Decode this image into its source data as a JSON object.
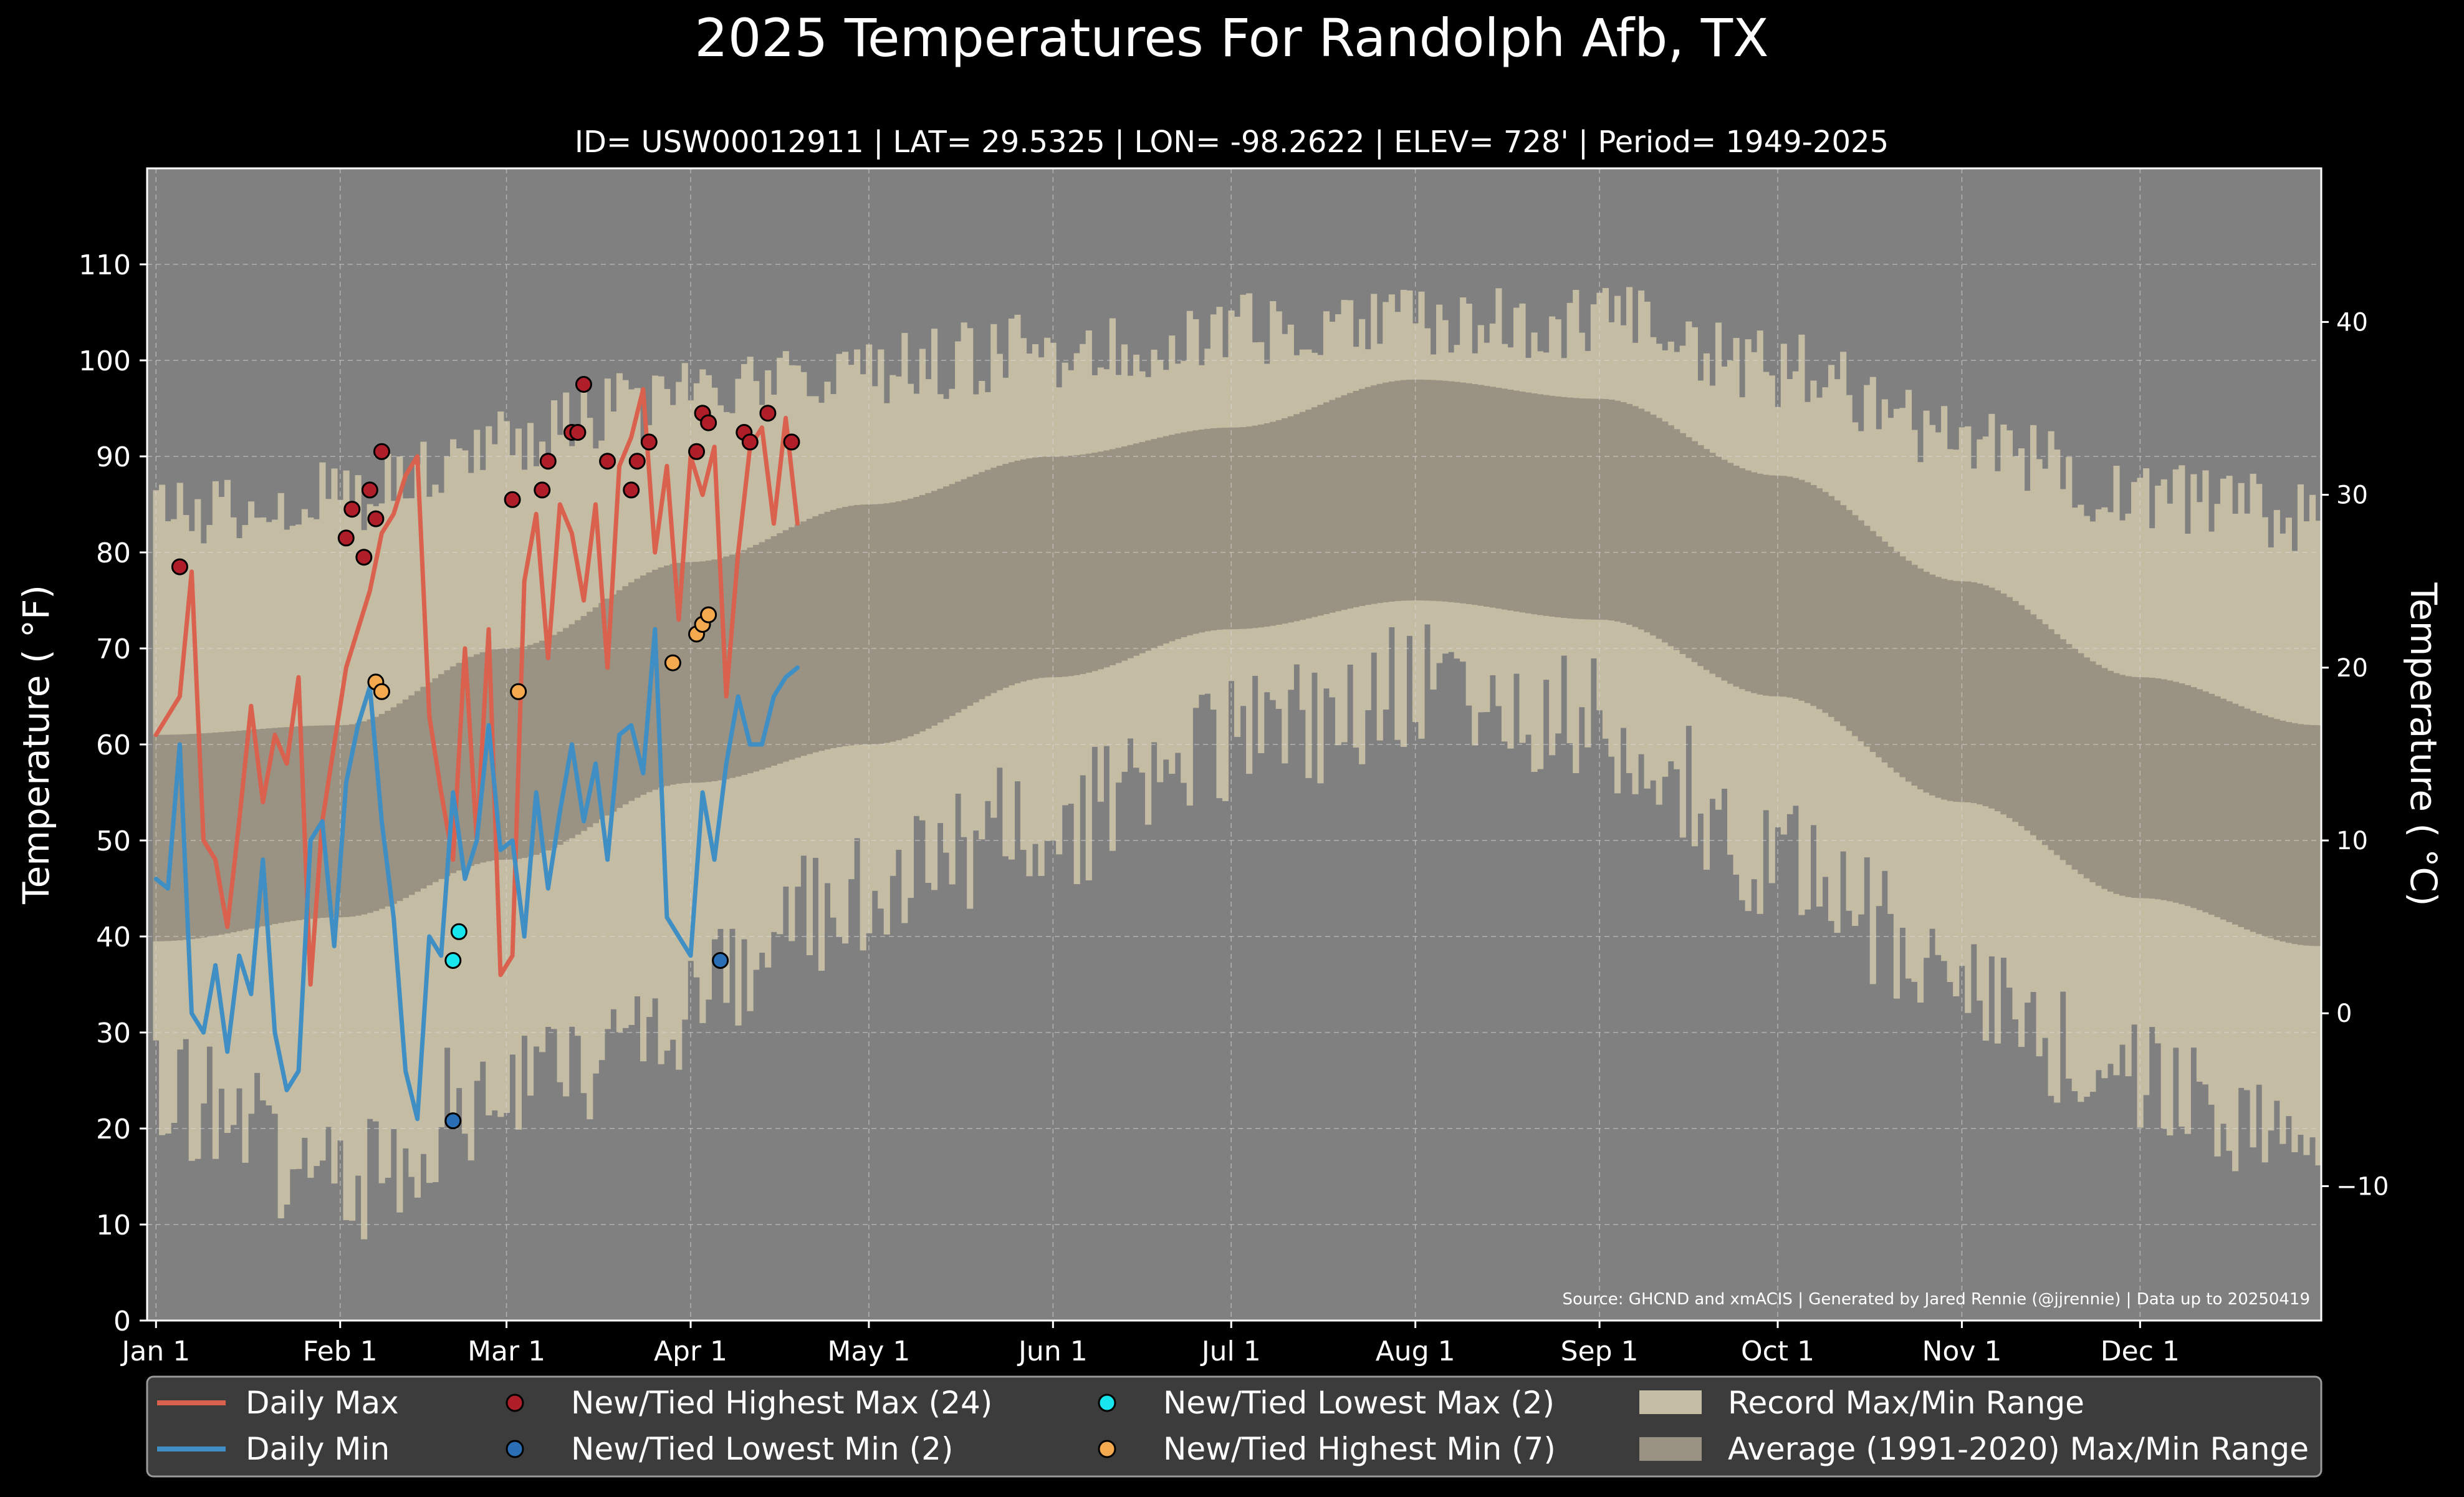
{
  "chart_data": {
    "type": "line",
    "title": "2025 Temperatures For Randolph Afb, TX",
    "subtitle": "ID= USW00012911 | LAT= 29.5325 | LON= -98.2622 | ELEV= 728' | Period= 1949-2025",
    "ylabel": "Temperature ($^\\circ$F)",
    "ylabel_display": "Temperature ( °F)",
    "y2label": "Temperature ( °C)",
    "source": "Source: GHCND and xmACIS | Generated by Jared Rennie (@jjrennie) | Data up to 20250419",
    "ylim": [
      0,
      120
    ],
    "xlim_days": [
      -1.5,
      364.5
    ],
    "grid": true,
    "legend_position": "bottom",
    "y_ticks": [
      0,
      10,
      20,
      30,
      40,
      50,
      60,
      70,
      80,
      90,
      100,
      110
    ],
    "y2_ticks": [
      40,
      30,
      20,
      10,
      0,
      -10
    ],
    "x_ticks": [
      {
        "label": "Jan 1",
        "day": 0
      },
      {
        "label": "Feb 1",
        "day": 31
      },
      {
        "label": "Mar 1",
        "day": 59
      },
      {
        "label": "Apr 1",
        "day": 90
      },
      {
        "label": "May 1",
        "day": 120
      },
      {
        "label": "Jun 1",
        "day": 151
      },
      {
        "label": "Jul 1",
        "day": 181
      },
      {
        "label": "Aug 1",
        "day": 212
      },
      {
        "label": "Sep 1",
        "day": 243
      },
      {
        "label": "Oct 1",
        "day": 273
      },
      {
        "label": "Nov 1",
        "day": 304
      },
      {
        "label": "Dec 1",
        "day": 334
      }
    ],
    "average_range": {
      "name": "Average (1991-2020) Max/Min Range",
      "max_keypoints": [
        [
          0,
          61
        ],
        [
          31,
          62
        ],
        [
          59,
          70
        ],
        [
          90,
          79
        ],
        [
          120,
          85
        ],
        [
          151,
          90
        ],
        [
          181,
          93
        ],
        [
          212,
          98
        ],
        [
          243,
          96
        ],
        [
          273,
          88
        ],
        [
          304,
          77
        ],
        [
          334,
          67
        ],
        [
          364,
          62
        ]
      ],
      "min_keypoints": [
        [
          0,
          39.5
        ],
        [
          31,
          42
        ],
        [
          59,
          48
        ],
        [
          90,
          56
        ],
        [
          120,
          60
        ],
        [
          151,
          67
        ],
        [
          181,
          72
        ],
        [
          212,
          75
        ],
        [
          243,
          73
        ],
        [
          273,
          65
        ],
        [
          304,
          54
        ],
        [
          334,
          44
        ],
        [
          364,
          39
        ]
      ]
    },
    "record_range": {
      "name": "Record Max/Min Range",
      "max_keypoints": [
        [
          0,
          84
        ],
        [
          31,
          86
        ],
        [
          59,
          92
        ],
        [
          90,
          96
        ],
        [
          120,
          99
        ],
        [
          151,
          101
        ],
        [
          181,
          103
        ],
        [
          212,
          104
        ],
        [
          243,
          104
        ],
        [
          273,
          99
        ],
        [
          304,
          92
        ],
        [
          334,
          86
        ],
        [
          364,
          84
        ]
      ],
      "min_keypoints": [
        [
          0,
          24
        ],
        [
          31,
          15
        ],
        [
          59,
          24
        ],
        [
          90,
          33
        ],
        [
          120,
          45
        ],
        [
          151,
          52
        ],
        [
          181,
          60
        ],
        [
          212,
          66
        ],
        [
          243,
          62
        ],
        [
          273,
          48
        ],
        [
          304,
          35
        ],
        [
          334,
          24
        ],
        [
          364,
          20
        ]
      ]
    },
    "series": [
      {
        "name": "Daily Max",
        "color": "#d9614e",
        "x": [
          0,
          2,
          4,
          6,
          8,
          10,
          12,
          14,
          16,
          18,
          20,
          22,
          24,
          26,
          28,
          30,
          32,
          34,
          36,
          38,
          40,
          42,
          44,
          46,
          48,
          50,
          52,
          54,
          56,
          58,
          60,
          62,
          64,
          66,
          68,
          70,
          72,
          74,
          76,
          78,
          80,
          82,
          84,
          86,
          88,
          90,
          92,
          94,
          96,
          98,
          100,
          102,
          104,
          106,
          108
        ],
        "values": [
          61,
          63,
          65,
          78,
          50,
          48,
          41,
          52,
          64,
          54,
          61,
          58,
          67,
          35,
          52,
          60,
          68,
          72,
          76,
          82,
          84,
          88,
          90,
          63,
          55,
          48,
          70,
          50,
          72,
          36,
          38,
          77,
          84,
          69,
          85,
          82,
          75,
          85,
          68,
          89,
          92,
          97,
          80,
          89,
          73,
          90,
          86,
          91,
          65,
          80,
          91,
          93,
          83,
          94,
          83
        ]
      },
      {
        "name": "Daily Min",
        "color": "#3f8fc4",
        "x": [
          0,
          2,
          4,
          6,
          8,
          10,
          12,
          14,
          16,
          18,
          20,
          22,
          24,
          26,
          28,
          30,
          32,
          34,
          36,
          38,
          40,
          42,
          44,
          46,
          48,
          50,
          52,
          54,
          56,
          58,
          60,
          62,
          64,
          66,
          68,
          70,
          72,
          74,
          76,
          78,
          80,
          82,
          84,
          86,
          88,
          90,
          92,
          94,
          96,
          98,
          100,
          102,
          104,
          106,
          108
        ],
        "values": [
          46,
          45,
          60,
          32,
          30,
          37,
          28,
          38,
          34,
          48,
          30,
          24,
          26,
          50,
          52,
          39,
          56,
          62,
          66,
          52,
          42,
          26,
          21,
          40,
          38,
          55,
          46,
          50,
          62,
          49,
          50,
          40,
          55,
          45,
          53,
          60,
          52,
          58,
          48,
          61,
          62,
          57,
          72,
          42,
          40,
          38,
          55,
          48,
          58,
          65,
          60,
          60,
          65,
          67,
          68
        ]
      },
      {
        "name": "New/Tied Highest Max (24)",
        "color": "#b01e2a",
        "type": "scatter",
        "points": [
          [
            4,
            78.5
          ],
          [
            32,
            81.5
          ],
          [
            33,
            84.5
          ],
          [
            35,
            79.5
          ],
          [
            36,
            86.5
          ],
          [
            37,
            83.5
          ],
          [
            38,
            90.5
          ],
          [
            60,
            85.5
          ],
          [
            65,
            86.5
          ],
          [
            66,
            89.5
          ],
          [
            70,
            92.5
          ],
          [
            71,
            92.5
          ],
          [
            72,
            97.5
          ],
          [
            76,
            89.5
          ],
          [
            80,
            86.5
          ],
          [
            81,
            89.5
          ],
          [
            83,
            91.5
          ],
          [
            91,
            90.5
          ],
          [
            92,
            94.5
          ],
          [
            93,
            93.5
          ],
          [
            99,
            92.5
          ],
          [
            100,
            91.5
          ],
          [
            103,
            94.5
          ],
          [
            107,
            91.5
          ]
        ]
      },
      {
        "name": "New/Tied Lowest Min (2)",
        "color": "#2a6fb5",
        "type": "scatter",
        "points": [
          [
            50,
            20.8
          ],
          [
            95,
            37.5
          ]
        ]
      },
      {
        "name": "New/Tied Lowest Max (2)",
        "color": "#17e6ee",
        "type": "scatter",
        "points": [
          [
            50,
            37.5
          ],
          [
            51,
            40.5
          ]
        ]
      },
      {
        "name": "New/Tied Highest Min (7)",
        "color": "#f5a94e",
        "type": "scatter",
        "points": [
          [
            37,
            66.5
          ],
          [
            38,
            65.5
          ],
          [
            61,
            65.5
          ],
          [
            87,
            68.5
          ],
          [
            91,
            71.5
          ],
          [
            92,
            72.5
          ],
          [
            93,
            73.5
          ]
        ]
      }
    ]
  },
  "legend": {
    "daily_max": "Daily Max",
    "daily_min": "Daily Min",
    "highest_max": "New/Tied Highest Max (24)",
    "lowest_min": "New/Tied Lowest Min (2)",
    "lowest_max": "New/Tied Lowest Max (2)",
    "highest_min": "New/Tied Highest Min (7)",
    "record_range": "Record Max/Min Range",
    "average_range": "Average (1991-2020) Max/Min Range"
  },
  "colors": {
    "background": "#000000",
    "plot_background": "#808080",
    "record_fill": "#c5bca4",
    "average_fill": "#9a9282",
    "legend_background": "#3c3c3c"
  }
}
